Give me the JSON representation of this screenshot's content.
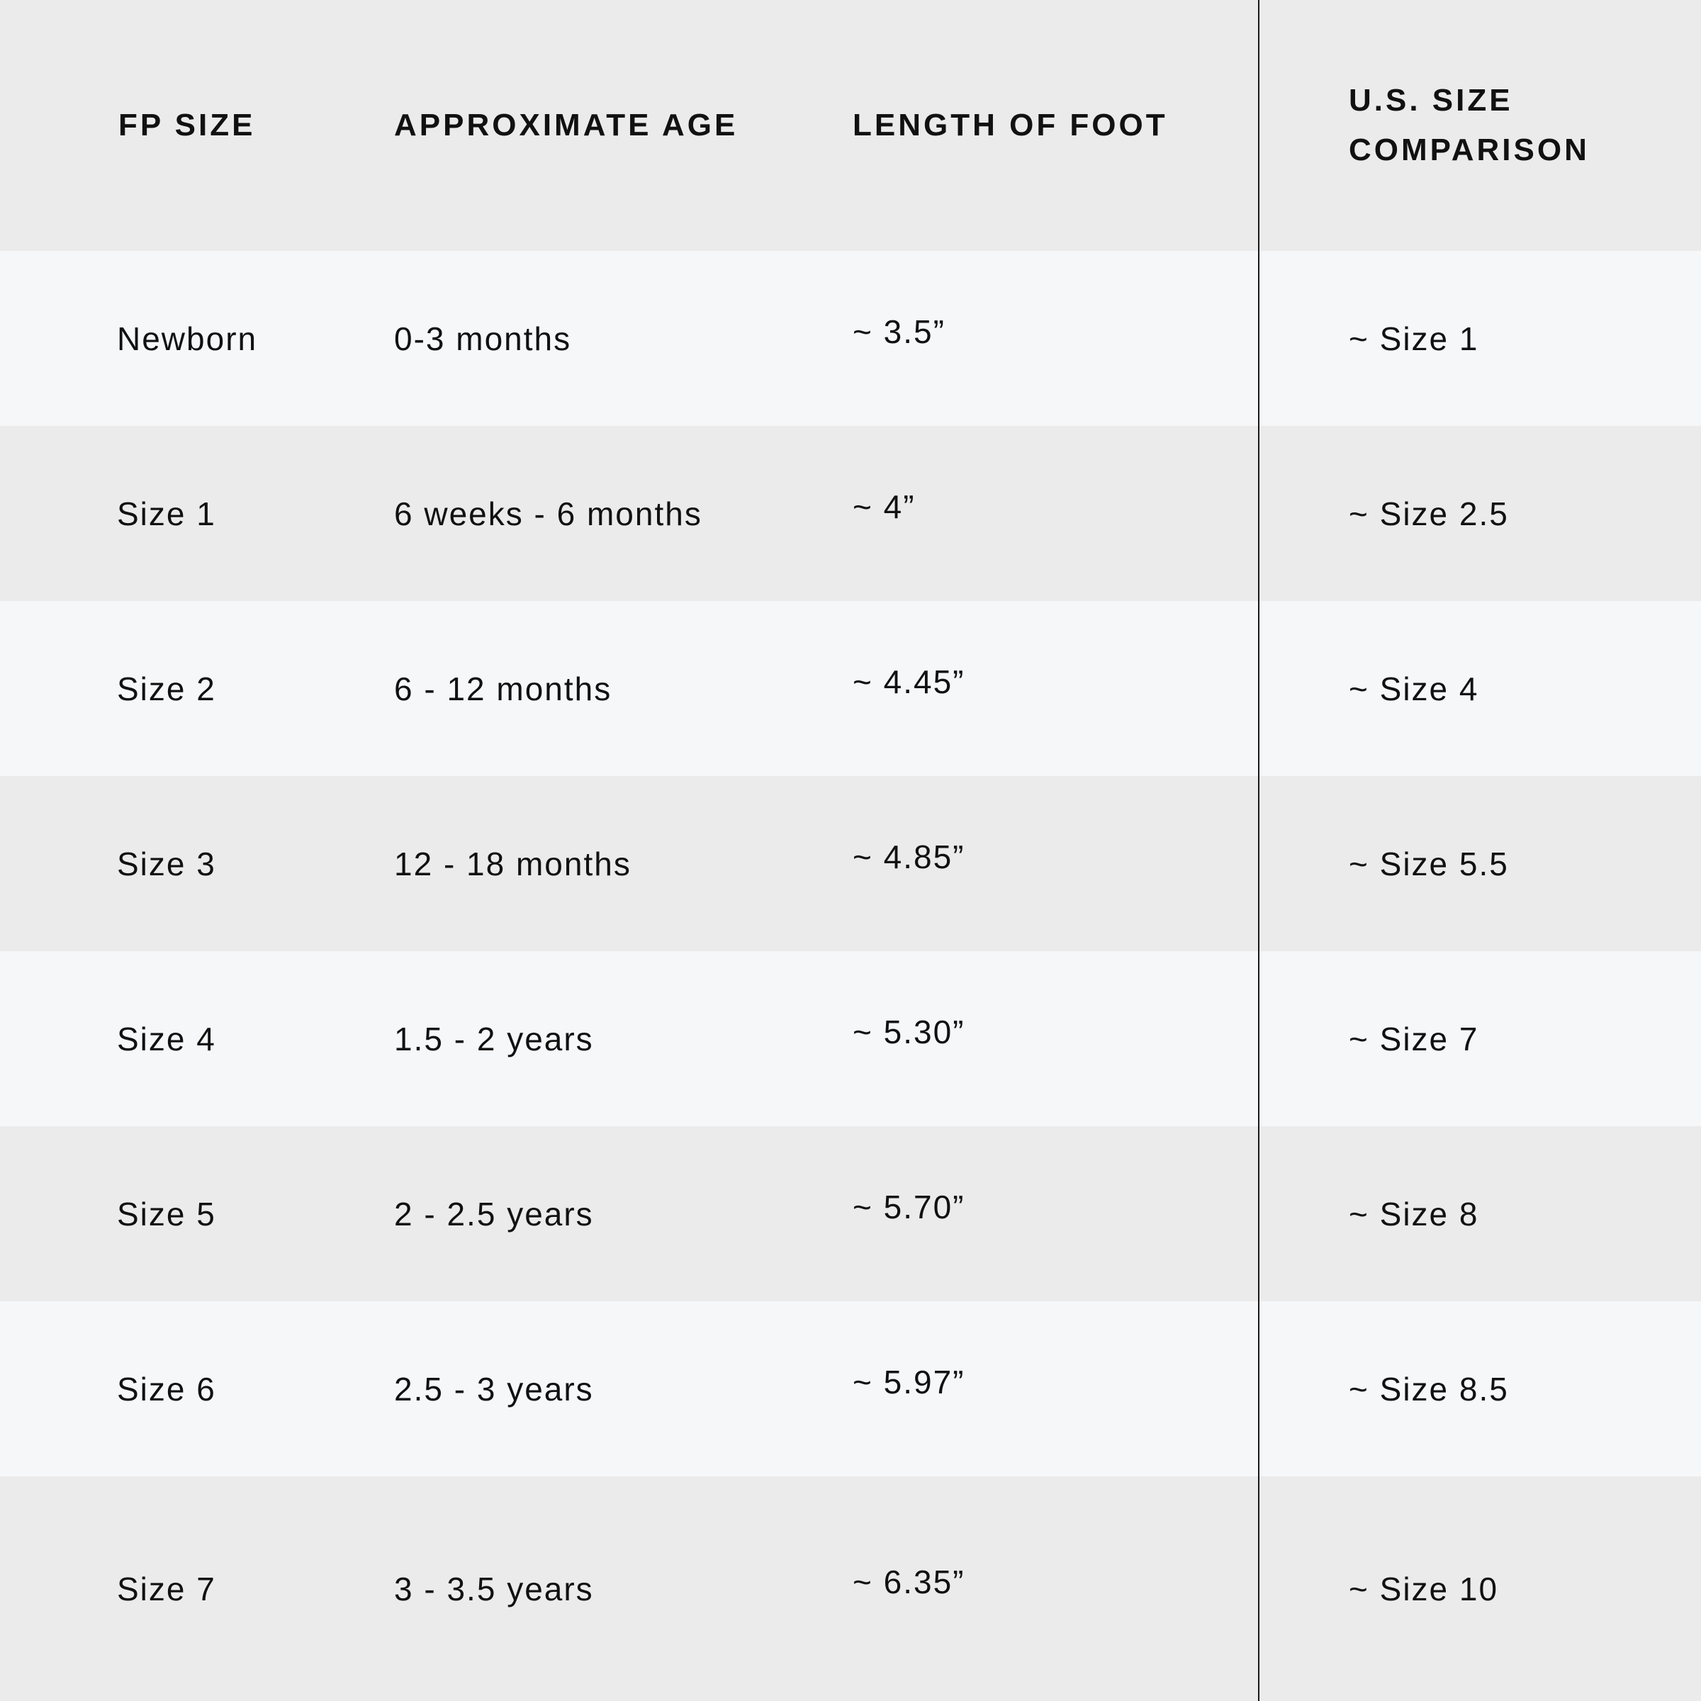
{
  "colors": {
    "header_bg": "#ebebeb",
    "row_light": "#f6f7f9",
    "row_dark": "#ebebeb",
    "text": "#111111",
    "divider": "#1a1a1a"
  },
  "headers": [
    "FP SIZE",
    "APPROXIMATE AGE",
    "LENGTH OF FOOT",
    "U.S. SIZE COMPARISON"
  ],
  "rows": [
    [
      "Newborn",
      "0-3 months",
      "~ 3.5”",
      "~ Size 1"
    ],
    [
      "Size 1",
      "6 weeks - 6 months",
      "~ 4”",
      "~ Size 2.5"
    ],
    [
      "Size 2",
      "6 - 12 months",
      "~ 4.45”",
      "~ Size 4"
    ],
    [
      "Size 3",
      "12 - 18 months",
      "~ 4.85”",
      "~ Size 5.5"
    ],
    [
      "Size 4",
      "1.5 - 2 years",
      "~ 5.30”",
      "~ Size 7"
    ],
    [
      "Size 5",
      "2 - 2.5 years",
      "~ 5.70”",
      "~ Size 8"
    ],
    [
      "Size 6",
      "2.5 - 3 years",
      "~ 5.97”",
      "~ Size 8.5"
    ],
    [
      "Size 7",
      "3 - 3.5 years",
      "~ 6.35”",
      "~ Size 10"
    ]
  ]
}
